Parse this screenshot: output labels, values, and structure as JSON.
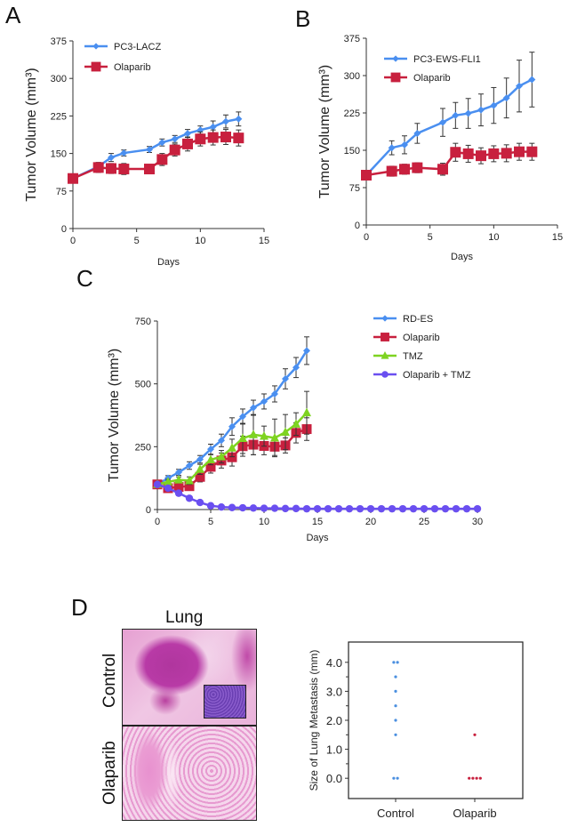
{
  "chart_data": [
    {
      "id": "A",
      "type": "line",
      "panel_label": "A",
      "title": "",
      "xlabel": "Days",
      "ylabel": "Tumor Volume (mm³)",
      "xlim": [
        0,
        15
      ],
      "ylim": [
        0,
        375
      ],
      "xticks": [
        0,
        5,
        10,
        15
      ],
      "yticks": [
        0,
        75,
        150,
        225,
        300,
        375
      ],
      "legend_position": "top-left",
      "grid": false,
      "series": [
        {
          "name": "PC3-LACZ",
          "color": "#4a8ff0",
          "marker": "diamond",
          "x": [
            0,
            2,
            3,
            4,
            6,
            7,
            8,
            9,
            10,
            11,
            12,
            13
          ],
          "y": [
            100,
            124,
            142,
            151,
            158,
            172,
            179,
            190,
            197,
            203,
            214,
            219
          ],
          "err": [
            4,
            8,
            8,
            6,
            6,
            7,
            7,
            8,
            8,
            12,
            13,
            14
          ]
        },
        {
          "name": "Olaparib",
          "color": "#c8203e",
          "marker": "square",
          "x": [
            0,
            2,
            3,
            4,
            6,
            7,
            8,
            9,
            10,
            11,
            12,
            13
          ],
          "y": [
            100,
            122,
            120,
            119,
            119,
            138,
            157,
            169,
            179,
            182,
            183,
            181
          ],
          "err": [
            4,
            10,
            10,
            11,
            8,
            12,
            12,
            14,
            14,
            15,
            15,
            16
          ]
        }
      ]
    },
    {
      "id": "B",
      "type": "line",
      "panel_label": "B",
      "title": "",
      "xlabel": "Days",
      "ylabel": "Tumor Volume (mm³)",
      "xlim": [
        0,
        15
      ],
      "ylim": [
        0,
        375
      ],
      "xticks": [
        0,
        5,
        10,
        15
      ],
      "yticks": [
        0,
        75,
        150,
        225,
        300,
        375
      ],
      "legend_position": "top-left",
      "grid": false,
      "series": [
        {
          "name": "PC3-EWS-FLI1",
          "color": "#4a8ff0",
          "marker": "diamond",
          "x": [
            0,
            2,
            3,
            4,
            6,
            7,
            8,
            9,
            10,
            11,
            12,
            13
          ],
          "y": [
            100,
            155,
            161,
            184,
            206,
            220,
            224,
            231,
            240,
            255,
            279,
            292
          ],
          "err": [
            4,
            14,
            18,
            20,
            28,
            26,
            30,
            32,
            36,
            40,
            52,
            55
          ]
        },
        {
          "name": "Olaparib",
          "color": "#c8203e",
          "marker": "square",
          "x": [
            0,
            2,
            3,
            4,
            6,
            7,
            8,
            9,
            10,
            11,
            12,
            13
          ],
          "y": [
            100,
            108,
            112,
            115,
            112,
            146,
            143,
            139,
            143,
            144,
            147,
            147
          ],
          "err": [
            4,
            10,
            10,
            10,
            12,
            18,
            17,
            16,
            16,
            17,
            17,
            17
          ]
        }
      ]
    },
    {
      "id": "C",
      "type": "line",
      "panel_label": "C",
      "title": "",
      "xlabel": "Days",
      "ylabel": "Tumor Volume (mm³)",
      "xlim": [
        0,
        30
      ],
      "ylim": [
        0,
        750
      ],
      "xticks": [
        0,
        5,
        10,
        15,
        20,
        25,
        30
      ],
      "yticks": [
        0,
        250,
        500,
        750
      ],
      "legend_position": "top-right",
      "grid": false,
      "series": [
        {
          "name": "RD-ES",
          "color": "#4a8ff0",
          "marker": "diamond",
          "x": [
            0,
            1,
            2,
            3,
            4,
            5,
            6,
            7,
            8,
            9,
            10,
            11,
            12,
            13,
            14
          ],
          "y": [
            100,
            125,
            148,
            175,
            200,
            240,
            275,
            330,
            370,
            405,
            430,
            460,
            520,
            565,
            632
          ],
          "err": [
            5,
            10,
            12,
            15,
            15,
            20,
            25,
            35,
            30,
            30,
            30,
            32,
            40,
            40,
            55
          ]
        },
        {
          "name": "Olaparib",
          "color": "#c8203e",
          "marker": "square",
          "x": [
            0,
            1,
            2,
            3,
            4,
            5,
            6,
            7,
            8,
            9,
            10,
            11,
            12,
            13,
            14
          ],
          "y": [
            100,
            85,
            90,
            93,
            130,
            170,
            195,
            208,
            252,
            258,
            253,
            250,
            255,
            305,
            320
          ],
          "err": [
            5,
            10,
            10,
            12,
            20,
            25,
            30,
            35,
            40,
            40,
            35,
            35,
            30,
            40,
            45
          ]
        },
        {
          "name": "TMZ",
          "color": "#7ed321",
          "marker": "triangle",
          "x": [
            0,
            1,
            2,
            3,
            4,
            5,
            6,
            7,
            8,
            9,
            10,
            11,
            12,
            13,
            14
          ],
          "y": [
            100,
            110,
            118,
            115,
            160,
            198,
            210,
            245,
            283,
            298,
            292,
            285,
            308,
            340,
            385
          ],
          "err": [
            5,
            10,
            12,
            15,
            20,
            20,
            25,
            35,
            60,
            80,
            40,
            75,
            70,
            45,
            85
          ]
        },
        {
          "name": "Olaparib + TMZ",
          "color": "#6a4ff0",
          "marker": "circle",
          "x": [
            0,
            1,
            2,
            3,
            4,
            5,
            6,
            7,
            8,
            9,
            10,
            11,
            12,
            13,
            14,
            15,
            16,
            17,
            18,
            19,
            20,
            21,
            22,
            23,
            24,
            25,
            26,
            27,
            28,
            29,
            30
          ],
          "y": [
            100,
            85,
            65,
            45,
            28,
            15,
            10,
            8,
            7,
            6,
            5,
            5,
            4,
            4,
            3,
            3,
            3,
            3,
            3,
            3,
            3,
            3,
            3,
            3,
            3,
            3,
            3,
            3,
            3,
            3,
            3
          ],
          "err": []
        }
      ]
    },
    {
      "id": "D",
      "type": "scatter",
      "panel_label": "D",
      "title": "",
      "xlabel": "",
      "ylabel": "Size of Lung Metastasis (mm)",
      "categories": [
        "Control",
        "Olaparib"
      ],
      "ylim": [
        -0.7,
        4.7
      ],
      "yticks": [
        "0.0",
        "1.0",
        "2.0",
        "3.0",
        "4.0"
      ],
      "grid": false,
      "series": [
        {
          "name": "Control",
          "color": "#4a8fe0",
          "values": [
            4.0,
            4.0,
            3.5,
            3.0,
            2.5,
            2.0,
            1.5,
            0.0,
            0.0
          ]
        },
        {
          "name": "Olaparib",
          "color": "#c8203e",
          "values": [
            1.5,
            0.0,
            0.0,
            0.0,
            0.0
          ]
        }
      ]
    }
  ],
  "panel_d_image": {
    "column_label": "Lung",
    "row_labels": [
      "Control",
      "Olaparib"
    ]
  }
}
